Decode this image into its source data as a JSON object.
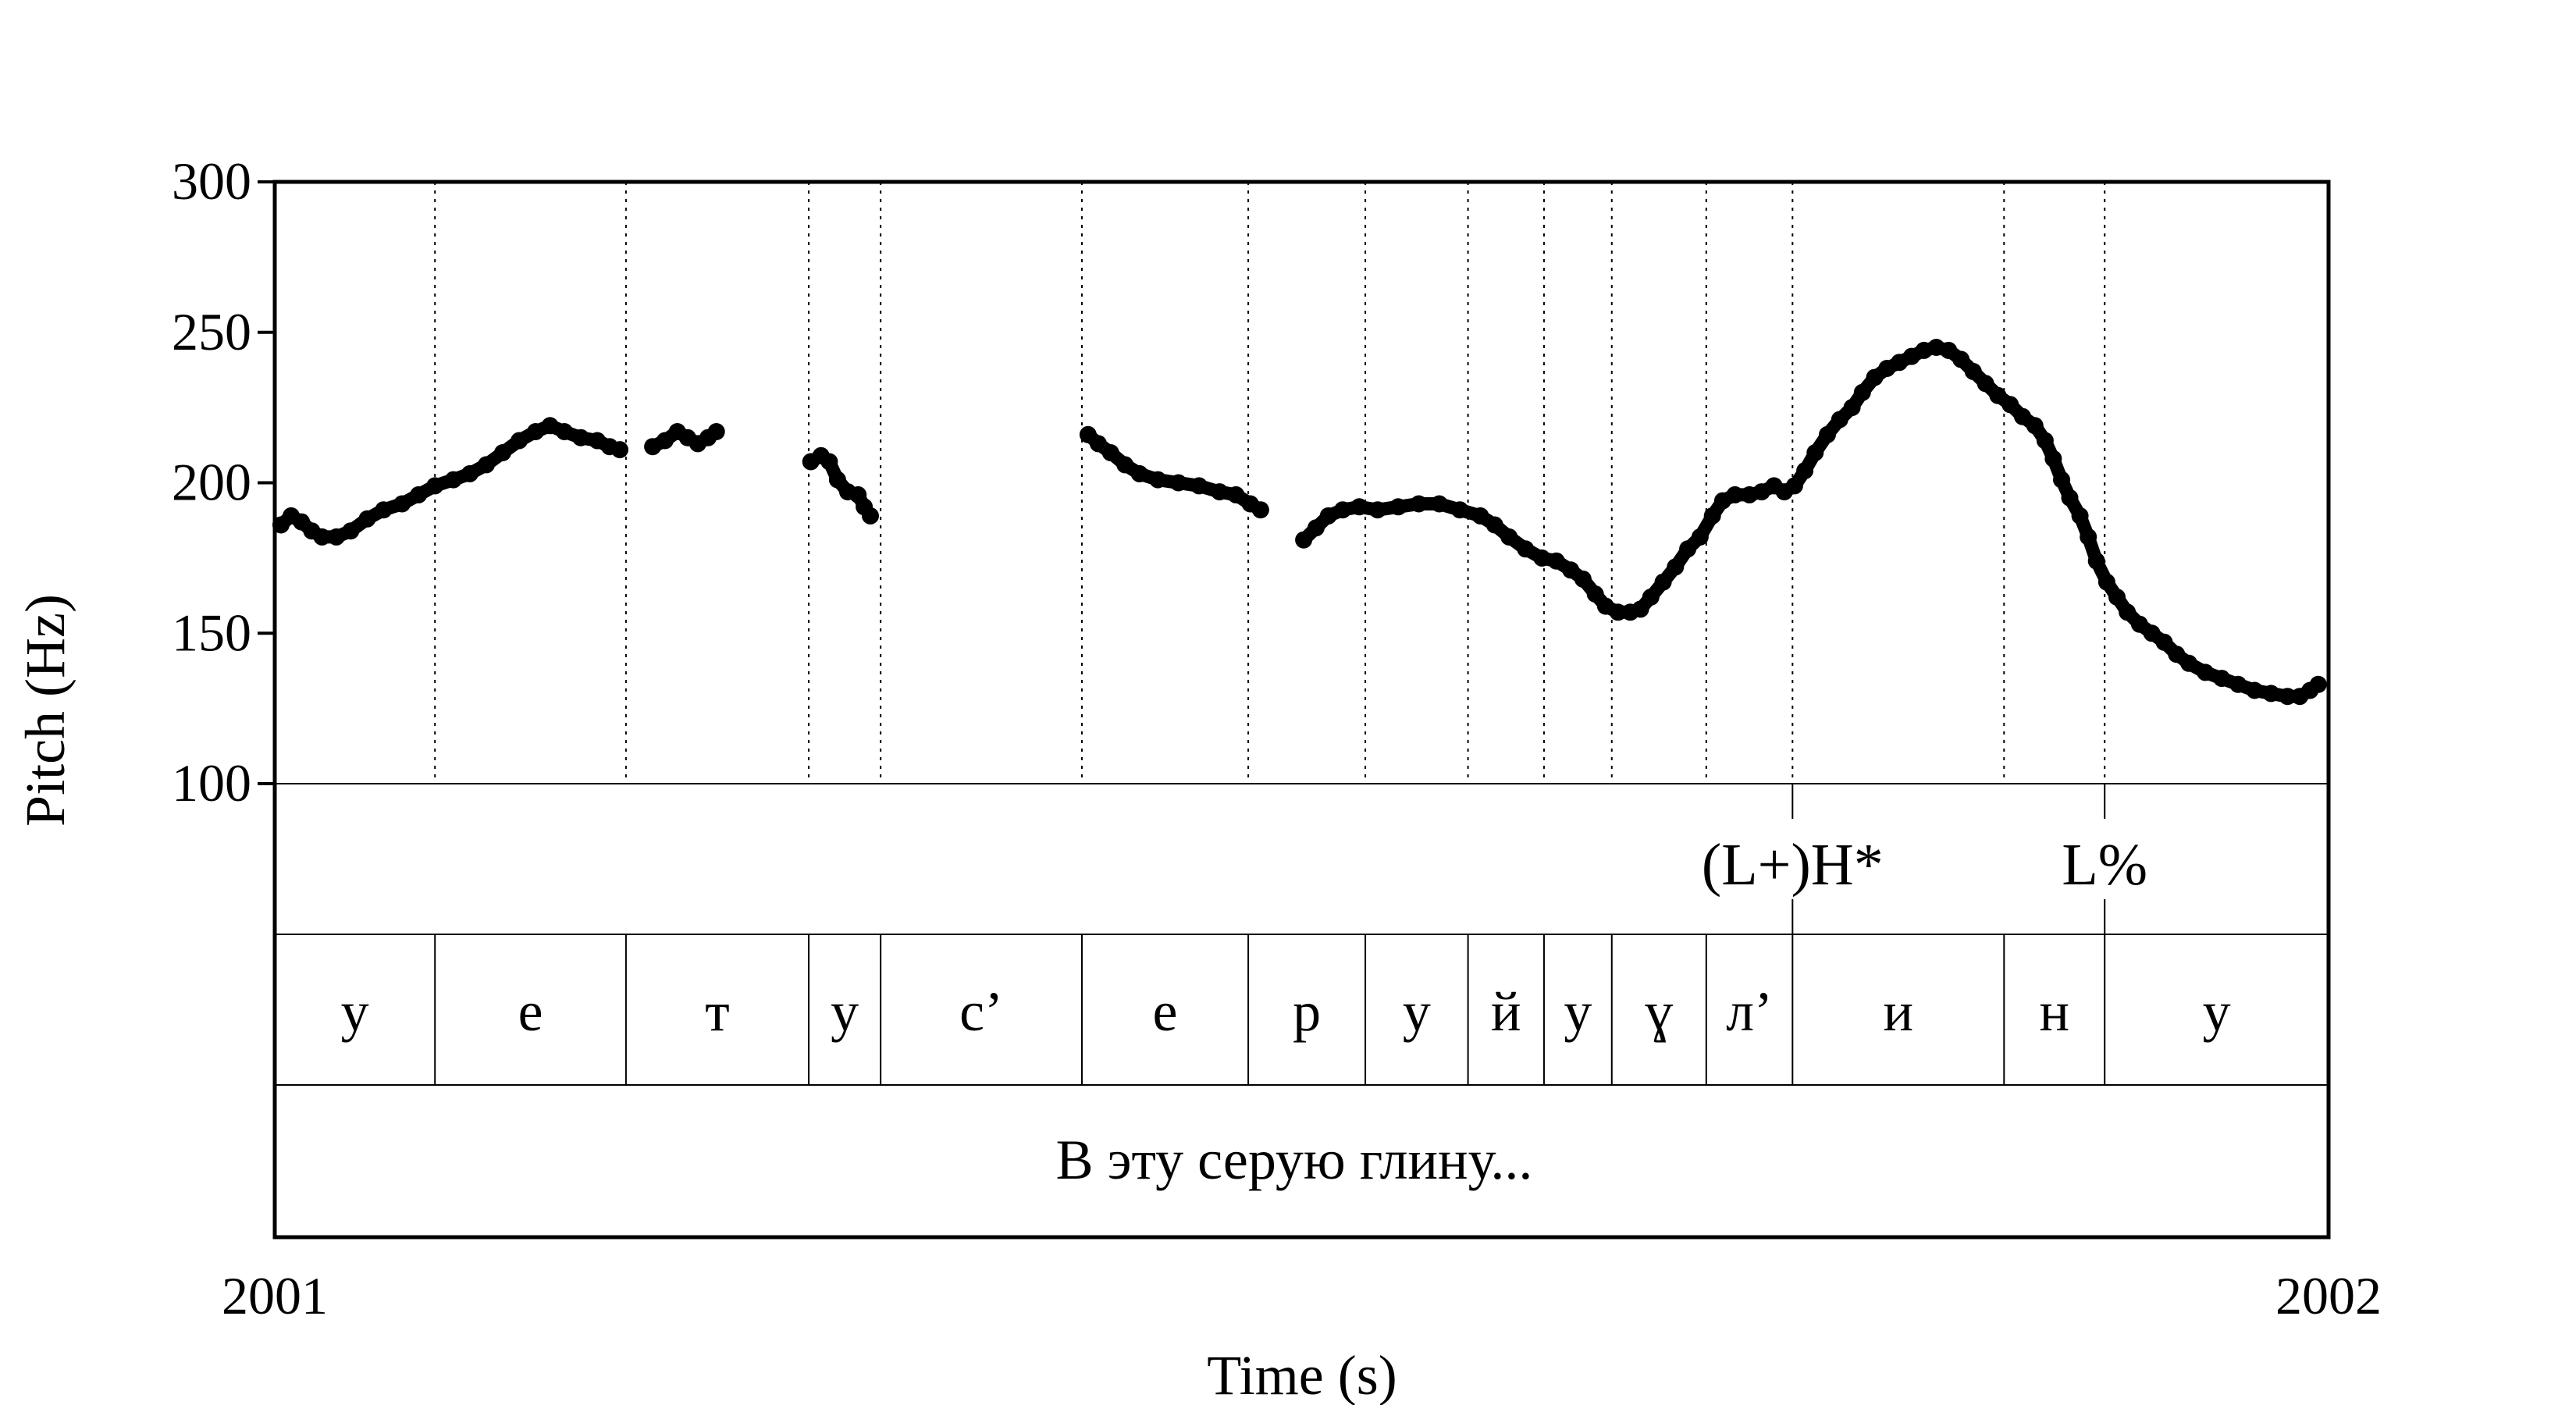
{
  "chart_data": {
    "type": "scatter",
    "title": "",
    "xlabel": "Time (s)",
    "ylabel": "Pitch (Hz)",
    "xlim": [
      2001,
      2002
    ],
    "ylim": [
      100,
      300
    ],
    "x_tick_labels": [
      "2001",
      "2002"
    ],
    "y_ticks": [
      100,
      150,
      200,
      250,
      300
    ],
    "y_tick_labels": [
      "100",
      "150",
      "200",
      "250",
      "300"
    ],
    "segment_boundaries": [
      2001.078,
      2001.171,
      2001.26,
      2001.295,
      2001.393,
      2001.474,
      2001.531,
      2001.581,
      2001.618,
      2001.651,
      2001.697,
      2001.739,
      2001.842,
      2001.891
    ],
    "segments": [
      {
        "label": "у",
        "start": 2001.0,
        "end": 2001.078
      },
      {
        "label": "е",
        "start": 2001.078,
        "end": 2001.171
      },
      {
        "label": "т",
        "start": 2001.171,
        "end": 2001.26
      },
      {
        "label": "у",
        "start": 2001.26,
        "end": 2001.295
      },
      {
        "label": "с’",
        "start": 2001.295,
        "end": 2001.393
      },
      {
        "label": "е",
        "start": 2001.393,
        "end": 2001.474
      },
      {
        "label": "р",
        "start": 2001.474,
        "end": 2001.531
      },
      {
        "label": "у",
        "start": 2001.531,
        "end": 2001.581
      },
      {
        "label": "й",
        "start": 2001.581,
        "end": 2001.618
      },
      {
        "label": "у",
        "start": 2001.618,
        "end": 2001.651
      },
      {
        "label": "ɣ",
        "start": 2001.651,
        "end": 2001.697
      },
      {
        "label": "л’",
        "start": 2001.697,
        "end": 2001.739
      },
      {
        "label": "и",
        "start": 2001.739,
        "end": 2001.842
      },
      {
        "label": "н",
        "start": 2001.842,
        "end": 2001.891
      },
      {
        "label": "у",
        "start": 2001.891,
        "end": 2002.0
      }
    ],
    "tones": [
      {
        "label": "(L+)H*",
        "time": 2001.739
      },
      {
        "label": "L%",
        "time": 2001.891
      }
    ],
    "transcription": "В эту серую глину...",
    "pitch_series": [
      {
        "name": "pitch-run-1",
        "points": [
          [
            2001.003,
            186
          ],
          [
            2001.008,
            189
          ],
          [
            2001.013,
            187
          ],
          [
            2001.018,
            184
          ],
          [
            2001.023,
            182
          ],
          [
            2001.03,
            182
          ],
          [
            2001.037,
            184
          ],
          [
            2001.045,
            188
          ],
          [
            2001.053,
            191
          ],
          [
            2001.062,
            193
          ],
          [
            2001.07,
            196
          ],
          [
            2001.078,
            199
          ],
          [
            2001.087,
            201
          ],
          [
            2001.095,
            203
          ],
          [
            2001.103,
            206
          ],
          [
            2001.111,
            210
          ],
          [
            2001.119,
            214
          ],
          [
            2001.127,
            217
          ],
          [
            2001.134,
            219
          ],
          [
            2001.141,
            217
          ],
          [
            2001.149,
            215
          ],
          [
            2001.157,
            214
          ],
          [
            2001.163,
            212
          ],
          [
            2001.168,
            211
          ]
        ]
      },
      {
        "name": "pitch-run-2",
        "points": [
          [
            2001.184,
            212
          ],
          [
            2001.19,
            214
          ],
          [
            2001.196,
            217
          ],
          [
            2001.201,
            215
          ],
          [
            2001.206,
            213
          ],
          [
            2001.211,
            215
          ],
          [
            2001.215,
            217
          ]
        ]
      },
      {
        "name": "pitch-run-3",
        "points": [
          [
            2001.261,
            207
          ],
          [
            2001.266,
            209
          ],
          [
            2001.27,
            207
          ],
          [
            2001.274,
            201
          ],
          [
            2001.279,
            197
          ],
          [
            2001.284,
            196
          ],
          [
            2001.287,
            192
          ],
          [
            2001.29,
            189
          ]
        ]
      },
      {
        "name": "pitch-run-4",
        "points": [
          [
            2001.396,
            216
          ],
          [
            2001.401,
            213
          ],
          [
            2001.407,
            210
          ],
          [
            2001.414,
            206
          ],
          [
            2001.421,
            203
          ],
          [
            2001.43,
            201
          ],
          [
            2001.44,
            200
          ],
          [
            2001.45,
            199
          ],
          [
            2001.46,
            197
          ],
          [
            2001.468,
            196
          ],
          [
            2001.475,
            193
          ],
          [
            2001.48,
            191
          ]
        ]
      },
      {
        "name": "pitch-run-5",
        "points": [
          [
            2001.501,
            181
          ],
          [
            2001.507,
            185
          ],
          [
            2001.513,
            189
          ],
          [
            2001.52,
            191
          ],
          [
            2001.528,
            192
          ],
          [
            2001.537,
            191
          ],
          [
            2001.547,
            192
          ],
          [
            2001.557,
            193
          ],
          [
            2001.567,
            193
          ],
          [
            2001.577,
            191
          ],
          [
            2001.587,
            189
          ],
          [
            2001.594,
            186
          ],
          [
            2001.601,
            182
          ],
          [
            2001.609,
            178
          ],
          [
            2001.617,
            175
          ],
          [
            2001.624,
            174
          ],
          [
            2001.631,
            171
          ],
          [
            2001.637,
            168
          ],
          [
            2001.643,
            163
          ],
          [
            2001.648,
            159
          ],
          [
            2001.654,
            157
          ],
          [
            2001.66,
            157
          ],
          [
            2001.665,
            158
          ],
          [
            2001.67,
            162
          ],
          [
            2001.676,
            167
          ],
          [
            2001.682,
            172
          ],
          [
            2001.688,
            178
          ],
          [
            2001.694,
            182
          ],
          [
            2001.7,
            189
          ],
          [
            2001.705,
            194
          ],
          [
            2001.711,
            196
          ],
          [
            2001.718,
            196
          ],
          [
            2001.724,
            197
          ],
          [
            2001.73,
            199
          ],
          [
            2001.735,
            197
          ],
          [
            2001.74,
            199
          ],
          [
            2001.745,
            204
          ],
          [
            2001.75,
            210
          ],
          [
            2001.756,
            216
          ],
          [
            2001.762,
            221
          ],
          [
            2001.768,
            225
          ],
          [
            2001.773,
            230
          ],
          [
            2001.779,
            235
          ],
          [
            2001.785,
            238
          ],
          [
            2001.791,
            240
          ],
          [
            2001.797,
            242
          ],
          [
            2001.803,
            244
          ],
          [
            2001.809,
            245
          ],
          [
            2001.815,
            244
          ],
          [
            2001.821,
            241
          ],
          [
            2001.827,
            237
          ],
          [
            2001.833,
            233
          ],
          [
            2001.839,
            229
          ],
          [
            2001.845,
            226
          ],
          [
            2001.851,
            222
          ],
          [
            2001.857,
            219
          ],
          [
            2001.862,
            214
          ],
          [
            2001.866,
            208
          ],
          [
            2001.87,
            201
          ],
          [
            2001.874,
            195
          ],
          [
            2001.879,
            189
          ],
          [
            2001.883,
            182
          ],
          [
            2001.887,
            174
          ],
          [
            2001.892,
            167
          ],
          [
            2001.897,
            162
          ],
          [
            2001.902,
            157
          ],
          [
            2001.908,
            153
          ],
          [
            2001.914,
            150
          ],
          [
            2001.92,
            147
          ],
          [
            2001.926,
            143
          ],
          [
            2001.932,
            140
          ],
          [
            2001.94,
            137
          ],
          [
            2001.948,
            135
          ],
          [
            2001.956,
            133
          ],
          [
            2001.964,
            131
          ],
          [
            2001.972,
            130
          ],
          [
            2001.98,
            129
          ],
          [
            2001.986,
            129
          ],
          [
            2001.991,
            131
          ],
          [
            2001.995,
            133
          ]
        ]
      }
    ]
  }
}
